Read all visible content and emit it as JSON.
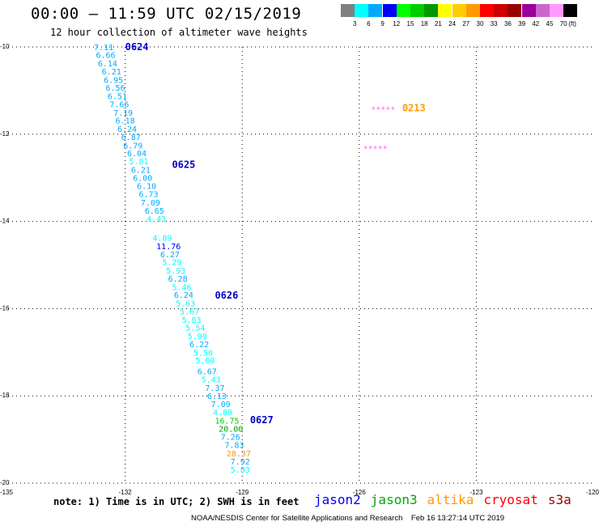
{
  "header": {
    "title": "00:00 – 11:59 UTC 02/15/2019",
    "subtitle": "12 hour collection of altimeter wave heights"
  },
  "colorbar": {
    "colors": [
      "#808080",
      "#00ffff",
      "#00aaff",
      "#0000ff",
      "#00ff00",
      "#00cc00",
      "#009900",
      "#ffff00",
      "#ffcc00",
      "#ff9900",
      "#ff0000",
      "#cc0000",
      "#990000",
      "#990099",
      "#cc66cc",
      "#ff99ff",
      "#000000"
    ],
    "labels": [
      "3",
      "6",
      "9",
      "12",
      "15",
      "18",
      "21",
      "24",
      "27",
      "30",
      "33",
      "36",
      "39",
      "42",
      "45",
      "70"
    ],
    "unit": "(ft)"
  },
  "map": {
    "lon_labels": [
      "-135",
      "-132",
      "-129",
      "-126",
      "-123",
      "-120"
    ],
    "lat_labels": [
      "10",
      "12",
      "14",
      "16",
      "18",
      "20"
    ],
    "pass_labels": [
      {
        "text": "0624",
        "lon": -132.0,
        "lat": 10.0,
        "color": "#0000cc"
      },
      {
        "text": "0625",
        "lon": -130.8,
        "lat": 12.7,
        "color": "#0000cc"
      },
      {
        "text": "0626",
        "lon": -129.7,
        "lat": 15.7,
        "color": "#0000cc"
      },
      {
        "text": "0627",
        "lon": -128.8,
        "lat": 18.55,
        "color": "#0000cc"
      },
      {
        "text": "0213",
        "lon": -124.9,
        "lat": 11.4,
        "color": "#ff9900"
      }
    ],
    "star_rows": [
      {
        "text": "*****",
        "lon": -125.7,
        "lat": 11.4,
        "color": "#ff66ff"
      },
      {
        "text": "*****",
        "lon": -125.9,
        "lat": 12.3,
        "color": "#ff66ff"
      }
    ],
    "wave_points": [
      {
        "value": "7.11",
        "lon": -132.8,
        "lat": 10.0,
        "color": "#00aaff"
      },
      {
        "value": "6.66",
        "lon": -132.75,
        "lat": 10.18,
        "color": "#00aaff"
      },
      {
        "value": "6.14",
        "lon": -132.7,
        "lat": 10.37,
        "color": "#00aaff"
      },
      {
        "value": "6.21",
        "lon": -132.6,
        "lat": 10.56,
        "color": "#00aaff"
      },
      {
        "value": "6.95",
        "lon": -132.55,
        "lat": 10.75,
        "color": "#00aaff"
      },
      {
        "value": "6.56",
        "lon": -132.5,
        "lat": 10.93,
        "color": "#00aaff"
      },
      {
        "value": "6.51",
        "lon": -132.45,
        "lat": 11.12,
        "color": "#00aaff"
      },
      {
        "value": "7.66",
        "lon": -132.4,
        "lat": 11.31,
        "color": "#00aaff"
      },
      {
        "value": "7.19",
        "lon": -132.3,
        "lat": 11.5,
        "color": "#00aaff"
      },
      {
        "value": "6.18",
        "lon": -132.25,
        "lat": 11.68,
        "color": "#00aaff"
      },
      {
        "value": "6.24",
        "lon": -132.2,
        "lat": 11.87,
        "color": "#00aaff"
      },
      {
        "value": "6.87",
        "lon": -132.1,
        "lat": 12.06,
        "color": "#00aaff"
      },
      {
        "value": "6.79",
        "lon": -132.05,
        "lat": 12.25,
        "color": "#00aaff"
      },
      {
        "value": "6.04",
        "lon": -131.95,
        "lat": 12.43,
        "color": "#00aaff"
      },
      {
        "value": "5.81",
        "lon": -131.9,
        "lat": 12.62,
        "color": "#00ffff"
      },
      {
        "value": "6.21",
        "lon": -131.85,
        "lat": 12.81,
        "color": "#00aaff"
      },
      {
        "value": "6.00",
        "lon": -131.8,
        "lat": 13.0,
        "color": "#00aaff"
      },
      {
        "value": "6.10",
        "lon": -131.7,
        "lat": 13.18,
        "color": "#00aaff"
      },
      {
        "value": "6.73",
        "lon": -131.65,
        "lat": 13.37,
        "color": "#00aaff"
      },
      {
        "value": "7.09",
        "lon": -131.6,
        "lat": 13.56,
        "color": "#00aaff"
      },
      {
        "value": "6.65",
        "lon": -131.5,
        "lat": 13.75,
        "color": "#00aaff"
      },
      {
        "value": "4.43",
        "lon": -131.45,
        "lat": 13.93,
        "color": "#00ffff"
      },
      {
        "value": "4.89",
        "lon": -131.3,
        "lat": 14.37,
        "color": "#00ffff"
      },
      {
        "value": "11.76",
        "lon": -131.2,
        "lat": 14.56,
        "color": "#0000ff"
      },
      {
        "value": "6.27",
        "lon": -131.1,
        "lat": 14.75,
        "color": "#00aaff"
      },
      {
        "value": "5.29",
        "lon": -131.05,
        "lat": 14.93,
        "color": "#00ffff"
      },
      {
        "value": "5.93",
        "lon": -130.95,
        "lat": 15.12,
        "color": "#00ffff"
      },
      {
        "value": "6.28",
        "lon": -130.9,
        "lat": 15.31,
        "color": "#00aaff"
      },
      {
        "value": "5.46",
        "lon": -130.8,
        "lat": 15.5,
        "color": "#00ffff"
      },
      {
        "value": "6.24",
        "lon": -130.75,
        "lat": 15.68,
        "color": "#00aaff"
      },
      {
        "value": "5.63",
        "lon": -130.7,
        "lat": 15.87,
        "color": "#00ffff"
      },
      {
        "value": "5.67",
        "lon": -130.6,
        "lat": 16.06,
        "color": "#00ffff"
      },
      {
        "value": "5.83",
        "lon": -130.55,
        "lat": 16.25,
        "color": "#00ffff"
      },
      {
        "value": "5.54",
        "lon": -130.45,
        "lat": 16.43,
        "color": "#00ffff"
      },
      {
        "value": "5.90",
        "lon": -130.4,
        "lat": 16.62,
        "color": "#00ffff"
      },
      {
        "value": "6.22",
        "lon": -130.35,
        "lat": 16.81,
        "color": "#00aaff"
      },
      {
        "value": "5.50",
        "lon": -130.25,
        "lat": 17.0,
        "color": "#00ffff"
      },
      {
        "value": "5.00",
        "lon": -130.2,
        "lat": 17.18,
        "color": "#00ffff"
      },
      {
        "value": "6.67",
        "lon": -130.15,
        "lat": 17.43,
        "color": "#00aaff"
      },
      {
        "value": "5.43",
        "lon": -130.05,
        "lat": 17.62,
        "color": "#00ffff"
      },
      {
        "value": "7.37",
        "lon": -129.95,
        "lat": 17.81,
        "color": "#00aaff"
      },
      {
        "value": "6.13",
        "lon": -129.9,
        "lat": 18.0,
        "color": "#00aaff"
      },
      {
        "value": "7.09",
        "lon": -129.8,
        "lat": 18.18,
        "color": "#00aaff"
      },
      {
        "value": "4.89",
        "lon": -129.75,
        "lat": 18.37,
        "color": "#00ffff"
      },
      {
        "value": "16.75",
        "lon": -129.7,
        "lat": 18.56,
        "color": "#00cc00"
      },
      {
        "value": "20.00",
        "lon": -129.6,
        "lat": 18.75,
        "color": "#009900"
      },
      {
        "value": "7.26",
        "lon": -129.55,
        "lat": 18.93,
        "color": "#00aaff"
      },
      {
        "value": "7.83",
        "lon": -129.45,
        "lat": 19.12,
        "color": "#00aaff"
      },
      {
        "value": "28.37",
        "lon": -129.4,
        "lat": 19.31,
        "color": "#ff9900"
      },
      {
        "value": "7.92",
        "lon": -129.3,
        "lat": 19.5,
        "color": "#00aaff"
      },
      {
        "value": "5.83",
        "lon": -129.3,
        "lat": 19.68,
        "color": "#00ffff"
      }
    ]
  },
  "note": "note: 1) Time is in UTC; 2) SWH is in feet",
  "legend": [
    {
      "label": "jason2",
      "color": "#0000ff"
    },
    {
      "label": "jason3",
      "color": "#00aa00"
    },
    {
      "label": "altika",
      "color": "#ff9900"
    },
    {
      "label": "cryosat",
      "color": "#ff0000"
    },
    {
      "label": "s3a",
      "color": "#990000"
    }
  ],
  "credit": "NOAA/NESDIS Center for Satellite Applications and Research    Feb 16 13:27:14 UTC 2019"
}
